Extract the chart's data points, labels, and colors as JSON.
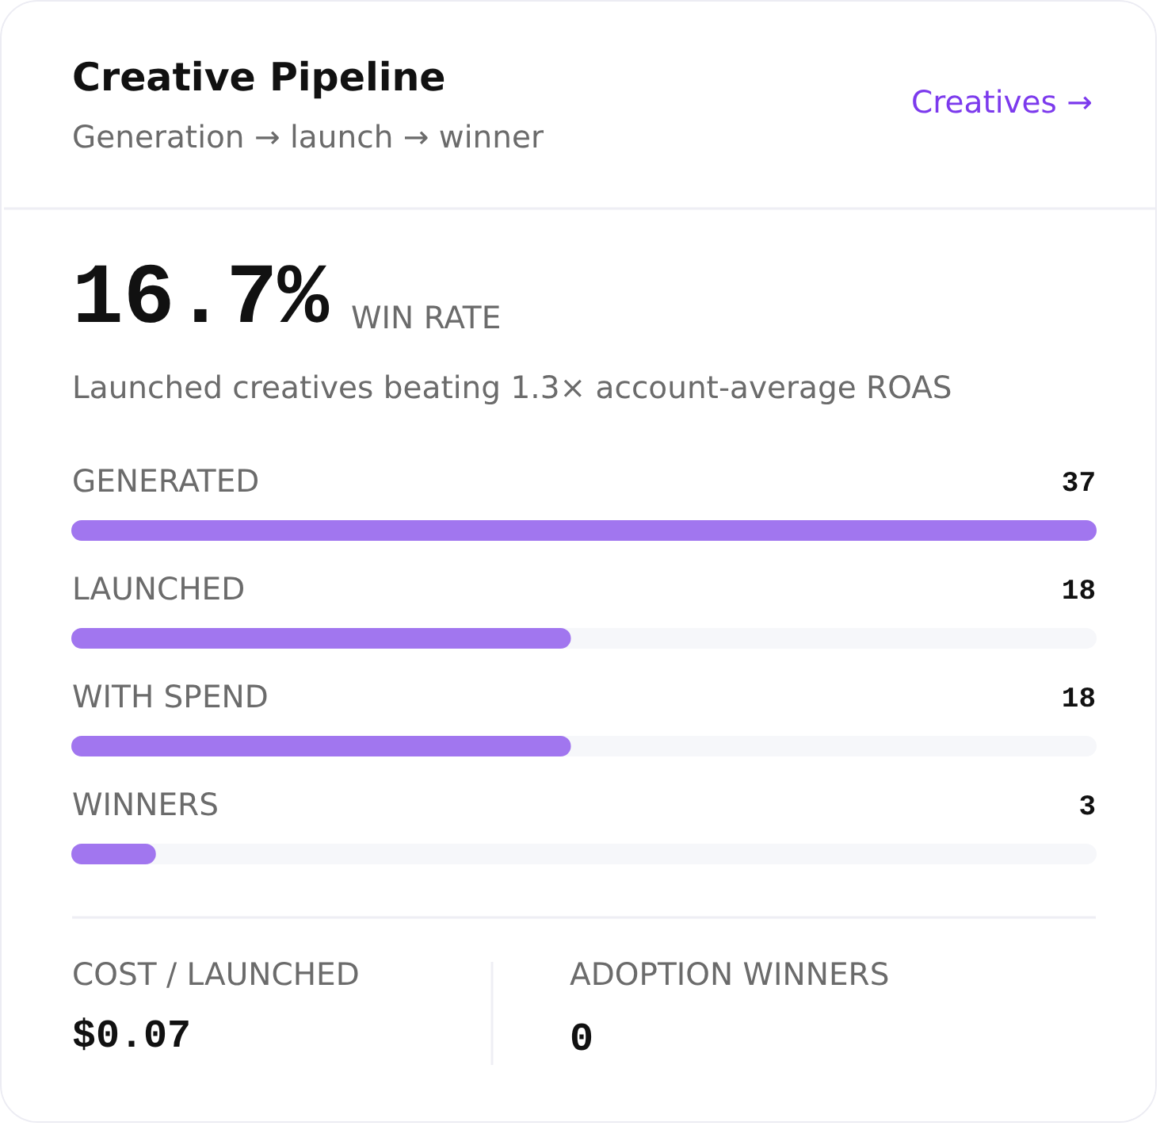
{
  "chart_data": {
    "type": "bar",
    "orientation": "horizontal",
    "title": "Creative Pipeline",
    "subtitle": "Generation → launch → winner",
    "categories": [
      "GENERATED",
      "LAUNCHED",
      "WITH SPEND",
      "WINNERS"
    ],
    "values": [
      37,
      18,
      18,
      3
    ],
    "color": "#a176ef",
    "xlim": [
      0,
      37
    ],
    "data_labels": true,
    "annotations": [
      "Creatives →",
      "16.7%",
      "WIN RATE",
      "Launched creatives beating 1.3× account-average ROAS",
      "COST / LAUNCHED",
      "$0.07",
      "ADOPTION WINNERS",
      "0"
    ]
  }
}
